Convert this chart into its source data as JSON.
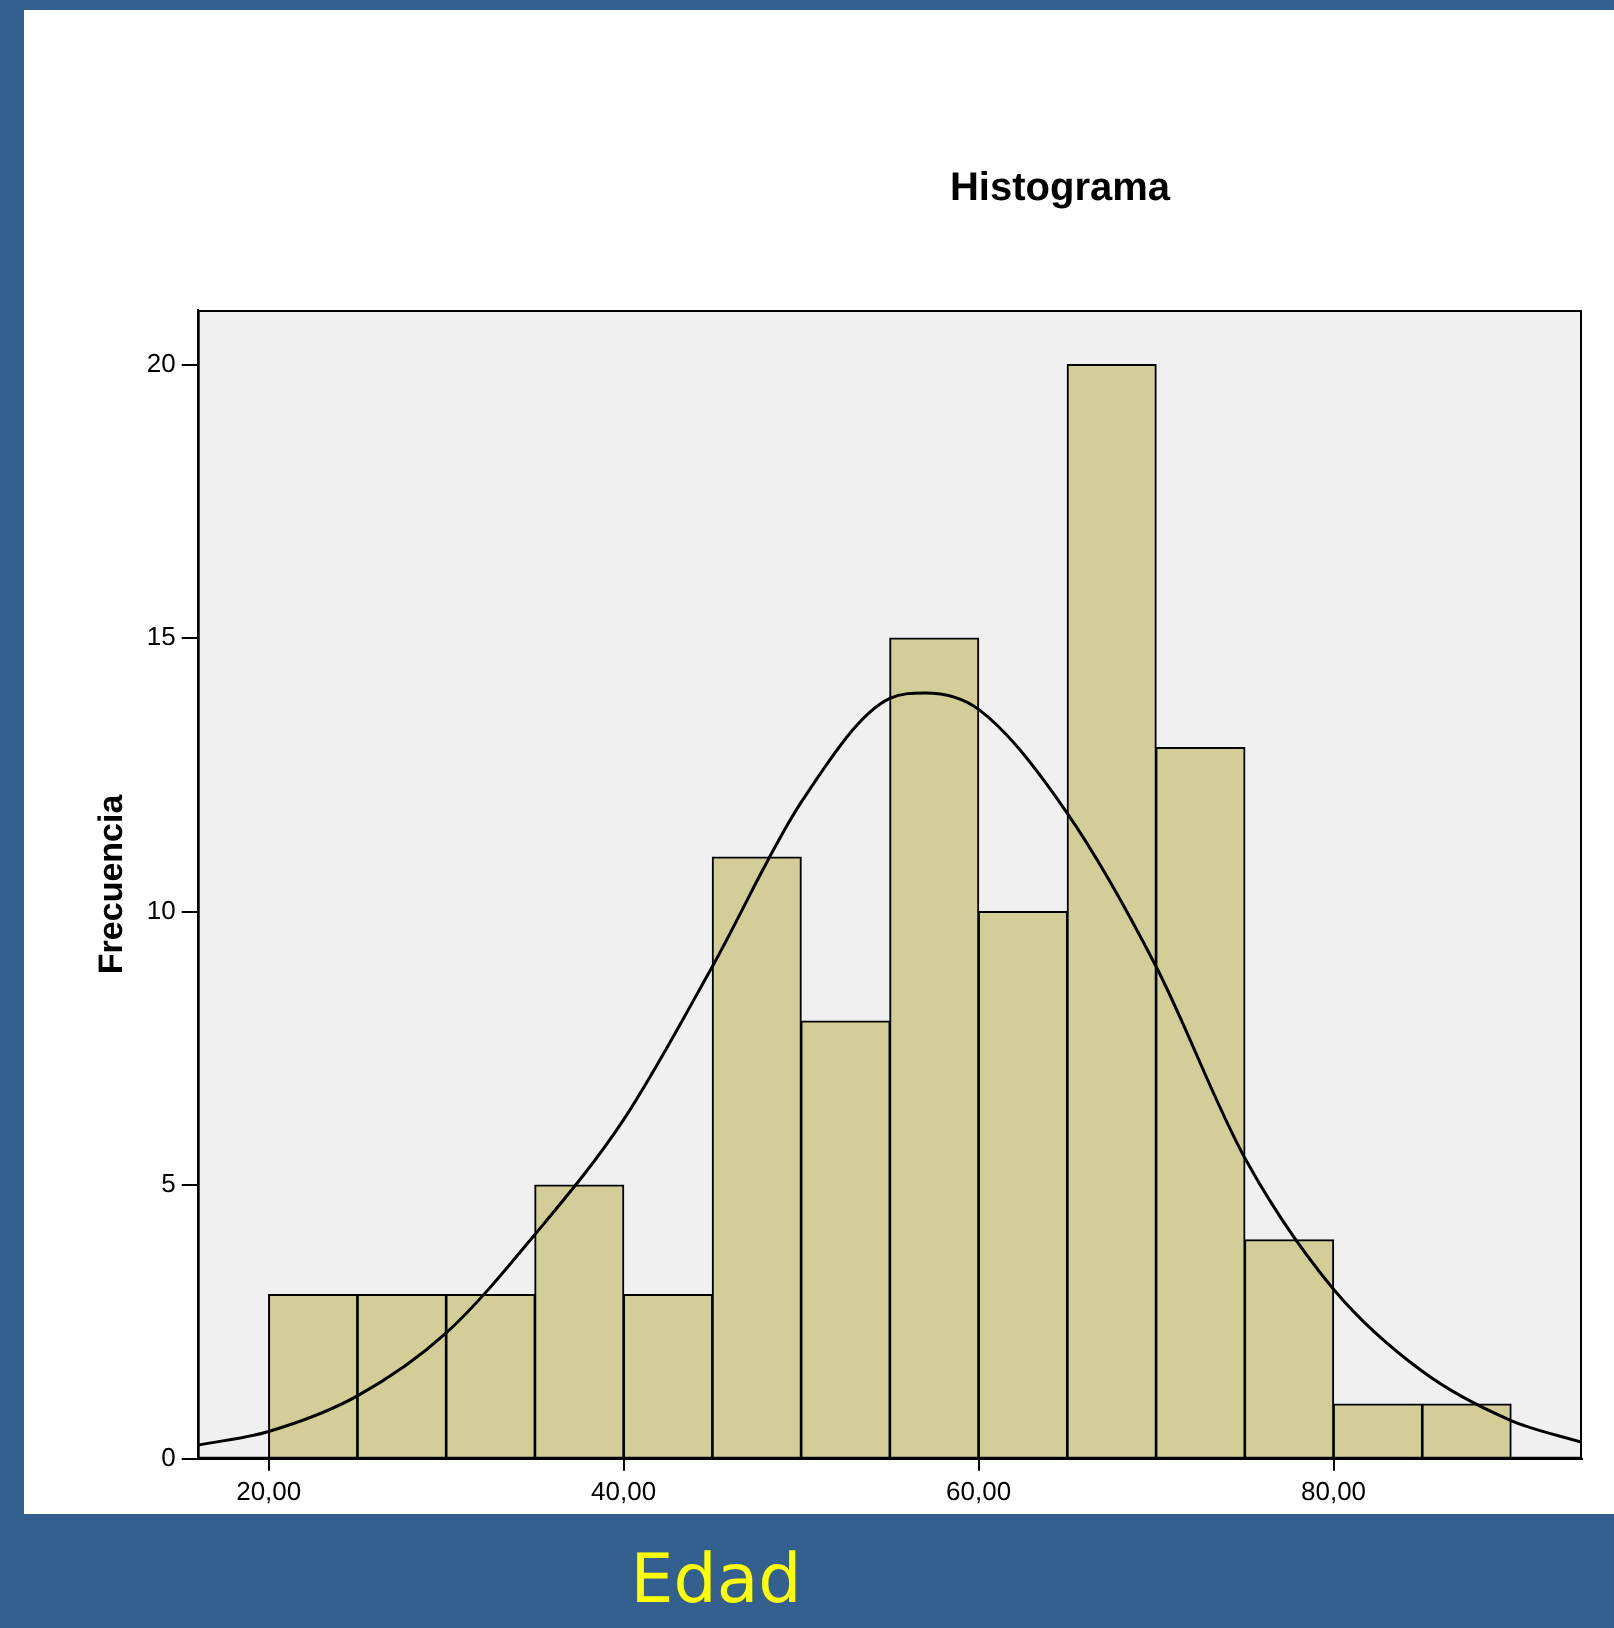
{
  "chart_data": {
    "type": "histogram",
    "title": "Histograma",
    "xlabel": "Edad",
    "ylabel": "Frecuencia",
    "bins": [
      20,
      25,
      30,
      35,
      40,
      45,
      50,
      55,
      60,
      65,
      70,
      75,
      80,
      85,
      90
    ],
    "values": [
      3,
      3,
      3,
      5,
      3,
      11,
      8,
      15,
      10,
      20,
      13,
      4,
      1,
      1
    ],
    "color": "#d3ce97",
    "series": [
      {
        "type": "line",
        "color": "#000000",
        "x": [
          16,
          20,
          25,
          30,
          35,
          40,
          45,
          50,
          55,
          57,
          60,
          65,
          70,
          75,
          80,
          85,
          90,
          94
        ],
        "values": [
          0.25,
          0.5,
          1.15,
          2.3,
          4.1,
          6.2,
          9.0,
          12.0,
          13.9,
          14.0,
          13.7,
          11.8,
          9.0,
          5.5,
          3.1,
          1.6,
          0.7,
          0.3
        ]
      }
    ],
    "xlim": [
      16,
      94
    ],
    "ylim": [
      0,
      21
    ],
    "xticks": [
      {
        "value": 20,
        "label": "20,00"
      },
      {
        "value": 40,
        "label": "40,00"
      },
      {
        "value": 60,
        "label": "60,00"
      },
      {
        "value": 80,
        "label": "80,00"
      }
    ],
    "yticks": [
      0,
      5,
      10,
      15,
      20
    ],
    "grid": false,
    "legend": false,
    "marker": "none",
    "line_style": "solid"
  }
}
